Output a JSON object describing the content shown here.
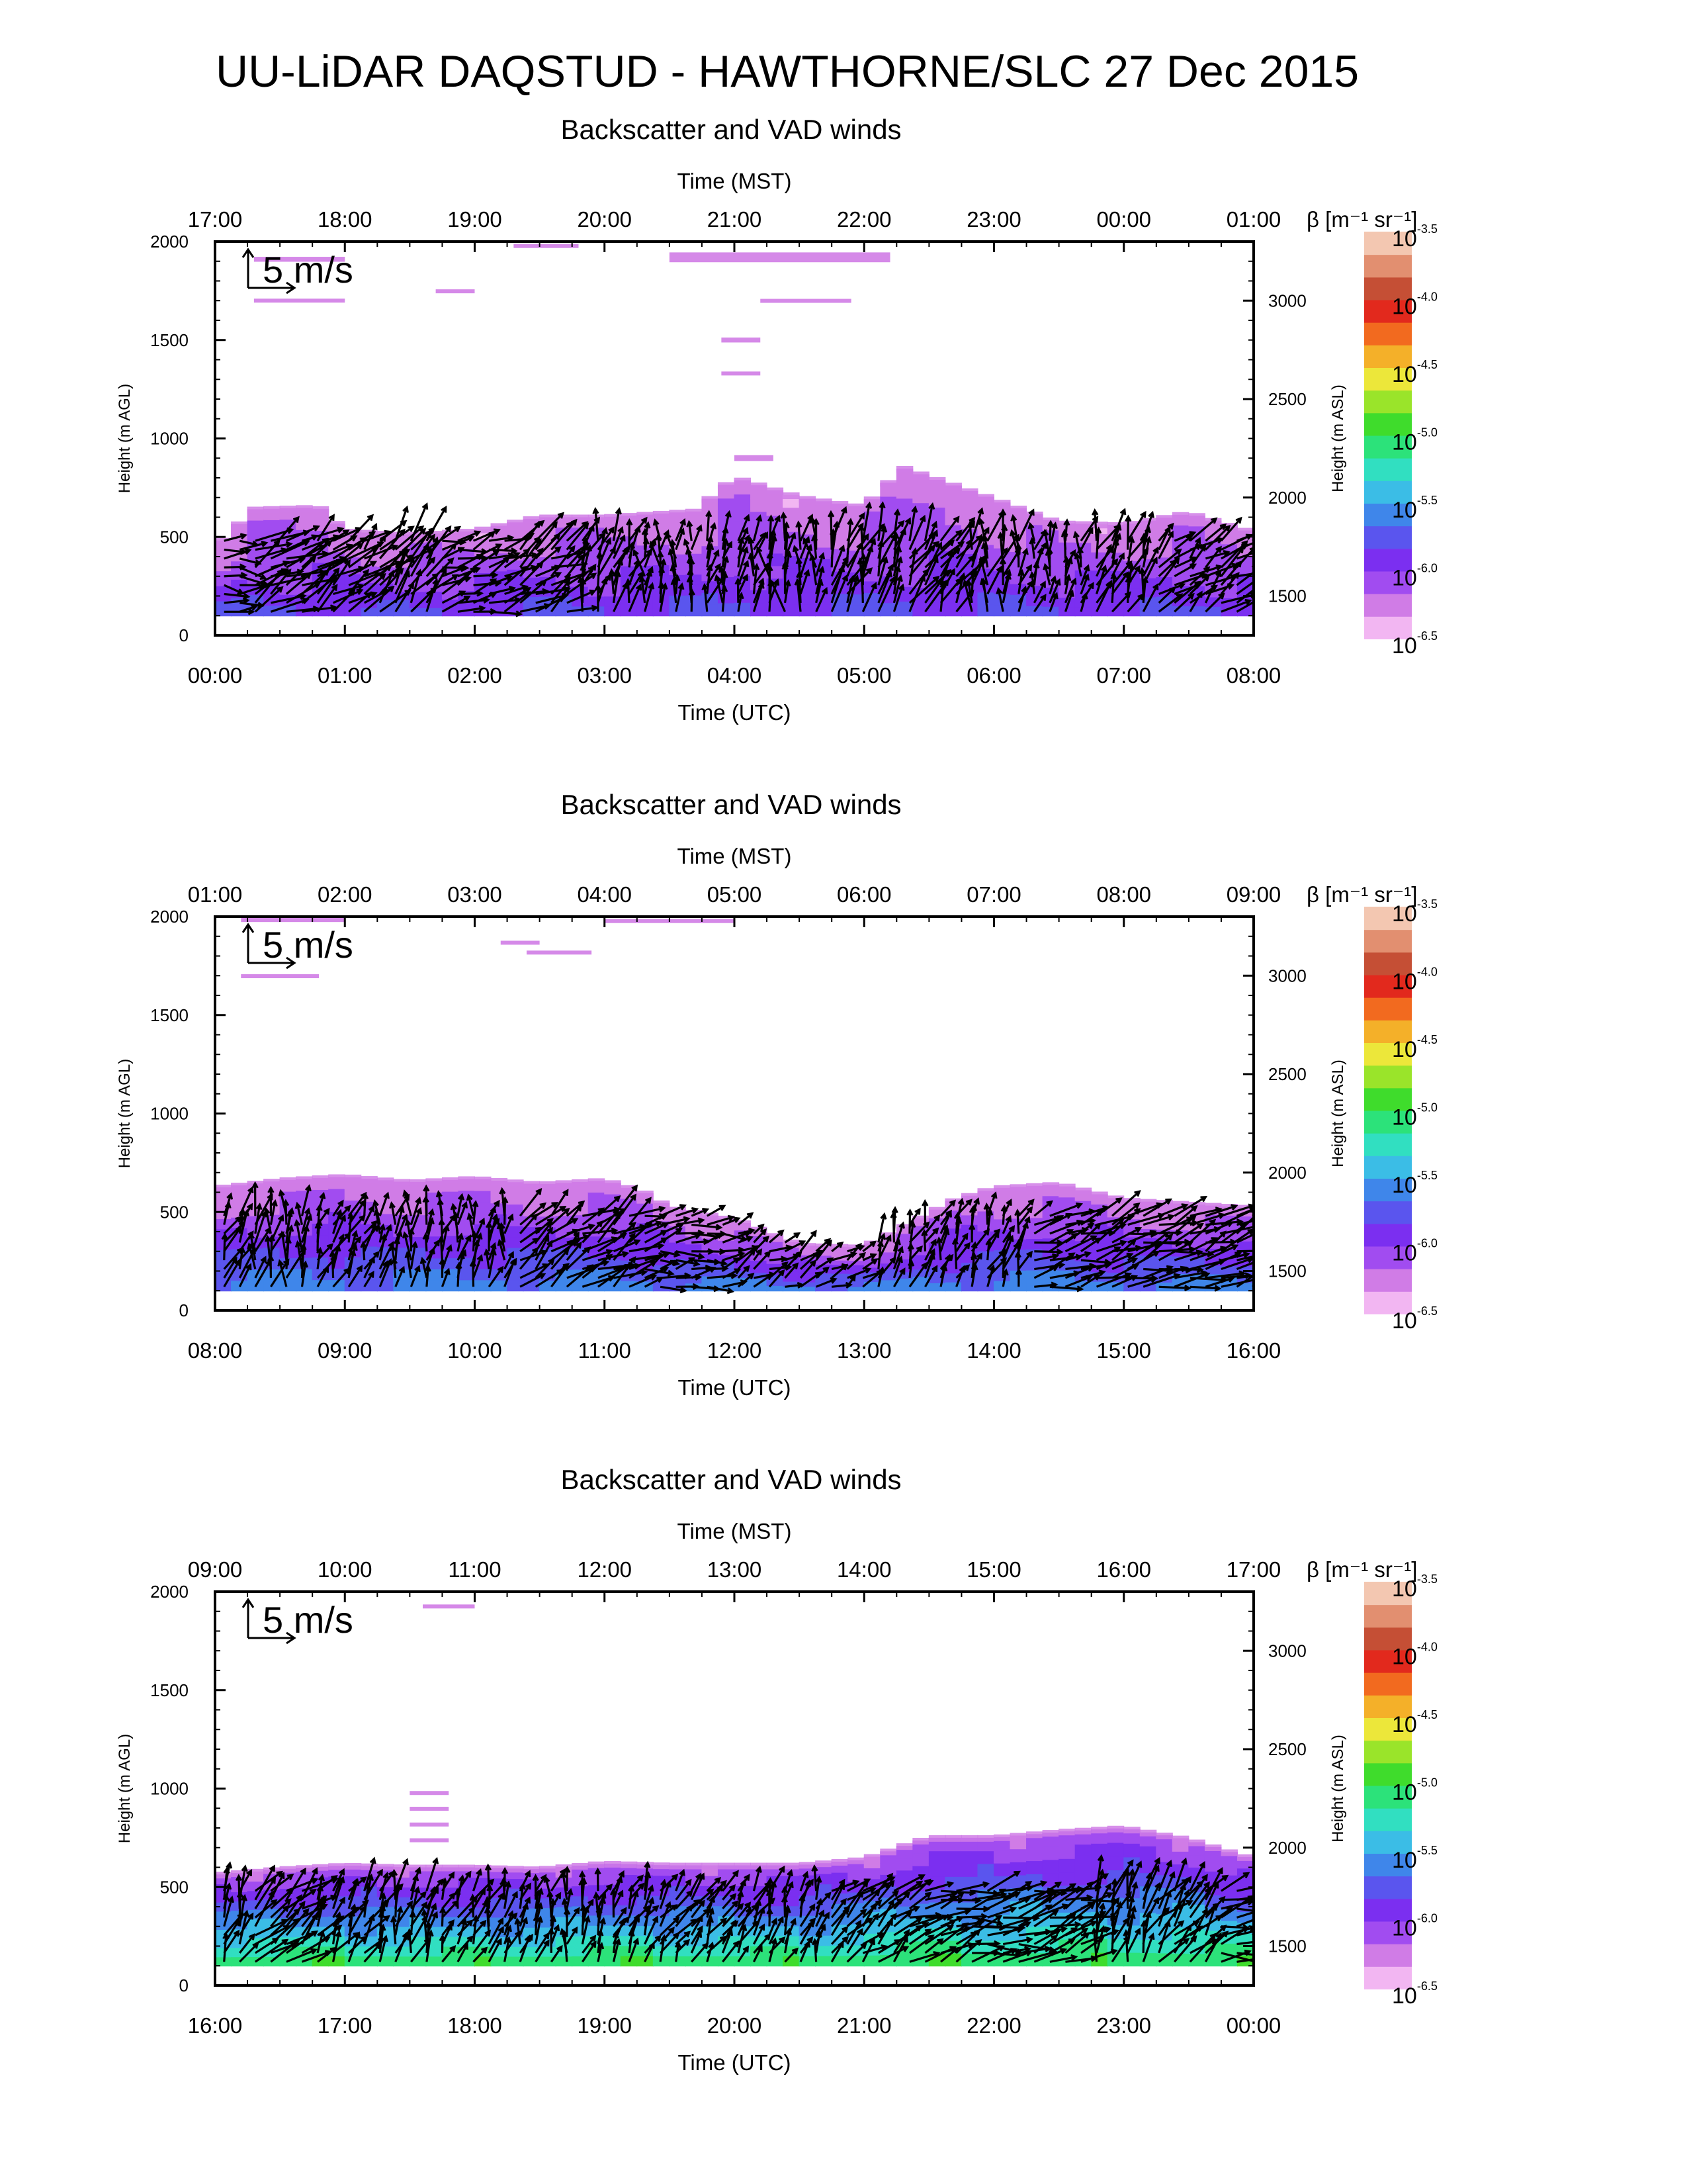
{
  "figure": {
    "title": "UU-LiDAR DAQSTUD - HAWTHORNE/SLC 27 Dec 2015"
  },
  "colors": {
    "colormap": [
      "#f2b6f2",
      "#d07ce6",
      "#a14cf0",
      "#7b2ff0",
      "#5a55ee",
      "#3f86ea",
      "#3bbde6",
      "#31dfc1",
      "#2ce27a",
      "#3fdc2c",
      "#9ae42a",
      "#ece73a",
      "#f4b029",
      "#f26a1f",
      "#e2291d",
      "#c54f35",
      "#e28f70",
      "#f3c7b1"
    ],
    "arrows": "#000000"
  },
  "chart_data": [
    {
      "type": "heatmap",
      "title": "Backscatter and VAD winds",
      "x_top_label": "Time (MST)",
      "x_top_ticks": [
        "17:00",
        "18:00",
        "19:00",
        "20:00",
        "21:00",
        "22:00",
        "23:00",
        "00:00",
        "01:00"
      ],
      "xlabel": "Time (UTC)",
      "x_ticks": [
        "00:00",
        "01:00",
        "02:00",
        "03:00",
        "04:00",
        "05:00",
        "06:00",
        "07:00",
        "08:00"
      ],
      "xlim_hours": [
        0,
        8
      ],
      "ylabel": "Height (m AGL)",
      "ylim": [
        0,
        2000
      ],
      "y_ticks": [
        0,
        500,
        1000,
        1500,
        2000
      ],
      "ylabel_right": "Height (m ASL)",
      "y_right_ticks": [
        1500,
        2000,
        2500,
        3000
      ],
      "ground_asl": 1300,
      "scale_arrow": "5 m/s",
      "colorbar_label": "β [m⁻¹ sr⁻¹]",
      "colorbar_ticks": [
        {
          "base": "10",
          "exp": "-3.5"
        },
        {
          "base": "10",
          "exp": "-4.0"
        },
        {
          "base": "10",
          "exp": "-4.5"
        },
        {
          "base": "10",
          "exp": "-5.0"
        },
        {
          "base": "10",
          "exp": "-5.5"
        },
        {
          "base": "10",
          "exp": "-6.0"
        },
        {
          "base": "10",
          "exp": "-6.5"
        }
      ],
      "log_beta_range": [
        -6.5,
        -3.5
      ],
      "profile_top_m": [
        [
          0.0,
          440
        ],
        [
          0.3,
          640
        ],
        [
          0.8,
          650
        ],
        [
          1.0,
          530
        ],
        [
          1.5,
          510
        ],
        [
          2.0,
          530
        ],
        [
          2.5,
          600
        ],
        [
          3.0,
          600
        ],
        [
          3.7,
          630
        ],
        [
          4.0,
          800
        ],
        [
          4.5,
          700
        ],
        [
          5.0,
          650
        ],
        [
          5.3,
          850
        ],
        [
          6.0,
          690
        ],
        [
          6.5,
          570
        ],
        [
          7.0,
          560
        ],
        [
          7.5,
          620
        ],
        [
          8.0,
          520
        ]
      ],
      "profile_base_m": 100,
      "beta_low_log": -6.35,
      "beta_high_log": -5.85,
      "aloft_layers": [
        [
          0.3,
          1.0,
          1700,
          20
        ],
        [
          0.3,
          1.0,
          1910,
          25
        ],
        [
          1.7,
          2.0,
          1750,
          15
        ],
        [
          2.3,
          2.8,
          1980,
          15
        ],
        [
          3.5,
          5.2,
          1920,
          50
        ],
        [
          3.9,
          4.2,
          1500,
          25
        ],
        [
          3.9,
          4.2,
          1330,
          20
        ],
        [
          4.2,
          4.9,
          1700,
          18
        ],
        [
          4.0,
          4.3,
          900,
          30
        ]
      ],
      "wind_samples": [
        [
          0.1,
          200,
          2.5,
          270
        ],
        [
          0.5,
          300,
          4.0,
          240
        ],
        [
          1.0,
          250,
          3.5,
          230
        ],
        [
          1.5,
          200,
          4.0,
          220
        ],
        [
          2.0,
          300,
          3.0,
          250
        ],
        [
          2.5,
          350,
          3.5,
          240
        ],
        [
          3.0,
          300,
          3.0,
          200
        ],
        [
          3.5,
          300,
          2.5,
          180
        ],
        [
          4.0,
          400,
          2.5,
          190
        ],
        [
          4.5,
          400,
          3.0,
          180
        ],
        [
          5.0,
          400,
          3.5,
          200
        ],
        [
          5.5,
          400,
          3.5,
          210
        ],
        [
          6.0,
          350,
          3.0,
          190
        ],
        [
          6.5,
          350,
          2.5,
          190
        ],
        [
          7.0,
          350,
          3.0,
          200
        ],
        [
          7.5,
          350,
          3.0,
          230
        ],
        [
          8.0,
          350,
          3.5,
          240
        ]
      ]
    },
    {
      "type": "heatmap",
      "title": "Backscatter and VAD winds",
      "x_top_label": "Time (MST)",
      "x_top_ticks": [
        "01:00",
        "02:00",
        "03:00",
        "04:00",
        "05:00",
        "06:00",
        "07:00",
        "08:00",
        "09:00"
      ],
      "xlabel": "Time (UTC)",
      "x_ticks": [
        "08:00",
        "09:00",
        "10:00",
        "11:00",
        "12:00",
        "13:00",
        "14:00",
        "15:00",
        "16:00"
      ],
      "xlim_hours": [
        8,
        16
      ],
      "ylabel": "Height (m AGL)",
      "ylim": [
        0,
        2000
      ],
      "y_ticks": [
        0,
        500,
        1000,
        1500,
        2000
      ],
      "ylabel_right": "Height (m ASL)",
      "y_right_ticks": [
        1500,
        2000,
        2500,
        3000
      ],
      "ground_asl": 1300,
      "scale_arrow": "5 m/s",
      "colorbar_label": "β [m⁻¹ sr⁻¹]",
      "colorbar_ticks": [
        {
          "base": "10",
          "exp": "-3.5"
        },
        {
          "base": "10",
          "exp": "-4.0"
        },
        {
          "base": "10",
          "exp": "-4.5"
        },
        {
          "base": "10",
          "exp": "-5.0"
        },
        {
          "base": "10",
          "exp": "-5.5"
        },
        {
          "base": "10",
          "exp": "-6.0"
        },
        {
          "base": "10",
          "exp": "-6.5"
        }
      ],
      "log_beta_range": [
        -6.5,
        -3.5
      ],
      "profile_top_m": [
        [
          8.0,
          620
        ],
        [
          8.5,
          660
        ],
        [
          9.0,
          680
        ],
        [
          9.5,
          650
        ],
        [
          10.0,
          670
        ],
        [
          10.5,
          640
        ],
        [
          11.0,
          660
        ],
        [
          11.3,
          600
        ],
        [
          11.5,
          520
        ],
        [
          12.0,
          460
        ],
        [
          12.5,
          330
        ],
        [
          13.0,
          320
        ],
        [
          13.3,
          420
        ],
        [
          13.7,
          560
        ],
        [
          14.0,
          620
        ],
        [
          14.5,
          640
        ],
        [
          15.0,
          560
        ],
        [
          15.5,
          540
        ],
        [
          16.0,
          520
        ]
      ],
      "profile_base_m": 100,
      "beta_low_log": -6.35,
      "beta_high_log": -5.6,
      "aloft_layers": [
        [
          8.2,
          9.0,
          1990,
          35
        ],
        [
          8.2,
          8.8,
          1700,
          15
        ],
        [
          10.2,
          10.5,
          1870,
          15
        ],
        [
          10.4,
          10.9,
          1820,
          15
        ],
        [
          11.0,
          12.0,
          1980,
          15
        ]
      ],
      "wind_samples": [
        [
          8.1,
          250,
          3.0,
          200
        ],
        [
          8.5,
          350,
          3.0,
          190
        ],
        [
          9.0,
          350,
          2.5,
          200
        ],
        [
          9.5,
          350,
          2.5,
          190
        ],
        [
          10.0,
          350,
          2.5,
          190
        ],
        [
          10.5,
          350,
          3.0,
          230
        ],
        [
          11.0,
          350,
          3.5,
          240
        ],
        [
          11.5,
          300,
          2.5,
          260
        ],
        [
          12.5,
          250,
          2.0,
          240
        ],
        [
          13.5,
          250,
          2.5,
          200
        ],
        [
          14.0,
          350,
          2.5,
          200
        ],
        [
          14.5,
          350,
          3.0,
          250
        ],
        [
          15.0,
          350,
          3.5,
          250
        ],
        [
          15.5,
          350,
          3.5,
          250
        ],
        [
          16.0,
          350,
          3.5,
          250
        ]
      ]
    },
    {
      "type": "heatmap",
      "title": "Backscatter and VAD winds",
      "x_top_label": "Time (MST)",
      "x_top_ticks": [
        "09:00",
        "10:00",
        "11:00",
        "12:00",
        "13:00",
        "14:00",
        "15:00",
        "16:00",
        "17:00"
      ],
      "xlabel": "Time (UTC)",
      "x_ticks": [
        "16:00",
        "17:00",
        "18:00",
        "19:00",
        "20:00",
        "21:00",
        "22:00",
        "23:00",
        "00:00"
      ],
      "xlim_hours": [
        16,
        24
      ],
      "ylabel": "Height (m AGL)",
      "ylim": [
        0,
        2000
      ],
      "y_ticks": [
        0,
        500,
        1000,
        1500,
        2000
      ],
      "ylabel_right": "Height (m ASL)",
      "y_right_ticks": [
        1500,
        2000,
        2500,
        3000
      ],
      "ground_asl": 1300,
      "scale_arrow": "5 m/s",
      "colorbar_label": "β [m⁻¹ sr⁻¹]",
      "colorbar_ticks": [
        {
          "base": "10",
          "exp": "-3.5"
        },
        {
          "base": "10",
          "exp": "-4.0"
        },
        {
          "base": "10",
          "exp": "-4.5"
        },
        {
          "base": "10",
          "exp": "-5.0"
        },
        {
          "base": "10",
          "exp": "-5.5"
        },
        {
          "base": "10",
          "exp": "-6.0"
        },
        {
          "base": "10",
          "exp": "-6.5"
        }
      ],
      "log_beta_range": [
        -6.5,
        -3.5
      ],
      "profile_top_m": [
        [
          16.0,
          560
        ],
        [
          16.5,
          590
        ],
        [
          17.0,
          610
        ],
        [
          17.5,
          600
        ],
        [
          18.0,
          600
        ],
        [
          18.5,
          590
        ],
        [
          19.0,
          620
        ],
        [
          19.5,
          610
        ],
        [
          20.0,
          610
        ],
        [
          20.5,
          610
        ],
        [
          21.0,
          640
        ],
        [
          21.5,
          750
        ],
        [
          22.0,
          750
        ],
        [
          22.5,
          780
        ],
        [
          23.0,
          800
        ],
        [
          23.5,
          740
        ],
        [
          24.0,
          640
        ]
      ],
      "profile_base_m": 100,
      "beta_low_log": -6.2,
      "beta_high_log": -5.0,
      "aloft_layers": [
        [
          17.5,
          17.8,
          980,
          15
        ],
        [
          17.5,
          17.8,
          900,
          15
        ],
        [
          17.5,
          17.8,
          820,
          15
        ],
        [
          17.5,
          17.8,
          740,
          15
        ],
        [
          17.6,
          18.0,
          1930,
          10
        ]
      ],
      "wind_samples": [
        [
          16.0,
          300,
          3.0,
          200
        ],
        [
          16.5,
          400,
          3.5,
          230
        ],
        [
          17.0,
          350,
          3.0,
          210
        ],
        [
          17.5,
          350,
          3.0,
          200
        ],
        [
          18.0,
          350,
          2.5,
          200
        ],
        [
          18.5,
          350,
          2.5,
          190
        ],
        [
          19.0,
          350,
          2.5,
          200
        ],
        [
          19.5,
          350,
          2.5,
          210
        ],
        [
          20.0,
          350,
          2.5,
          210
        ],
        [
          20.5,
          350,
          2.5,
          200
        ],
        [
          21.0,
          350,
          3.0,
          230
        ],
        [
          21.5,
          350,
          3.0,
          250
        ],
        [
          22.0,
          400,
          3.5,
          260
        ],
        [
          22.5,
          400,
          3.5,
          250
        ],
        [
          23.0,
          400,
          3.5,
          200
        ],
        [
          23.5,
          400,
          3.5,
          220
        ],
        [
          24.0,
          400,
          3.5,
          260
        ]
      ]
    }
  ]
}
